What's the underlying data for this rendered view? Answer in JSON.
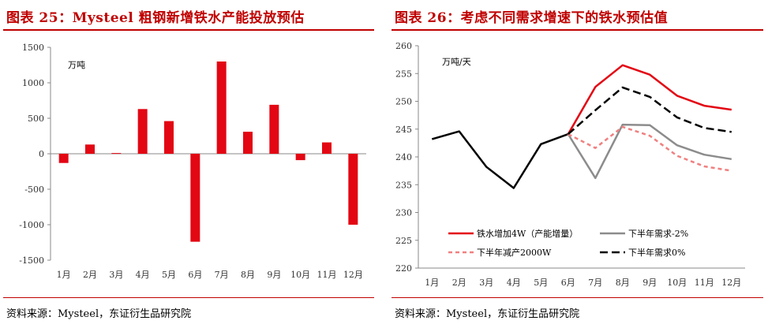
{
  "left": {
    "title": "图表 25：Mysteel 粗钢新增铁水产能投放预估",
    "source": "资料来源：Mysteel，东证衍生品研究院"
  },
  "right": {
    "title": "图表 26：考虑不同需求增速下的铁水预估值",
    "source": "资料来源：Mysteel，东证衍生品研究院"
  },
  "chart_data": [
    {
      "type": "bar",
      "unit_label": "万吨",
      "categories": [
        "1月",
        "2月",
        "3月",
        "4月",
        "5月",
        "6月",
        "7月",
        "8月",
        "9月",
        "10月",
        "11月",
        "12月"
      ],
      "values": [
        -130,
        130,
        10,
        630,
        460,
        -1240,
        1300,
        310,
        690,
        -90,
        160,
        -1000
      ],
      "ylim": [
        -1500,
        1500
      ],
      "yticks": [
        -1500,
        -1000,
        -500,
        0,
        500,
        1000,
        1500
      ],
      "color": "#e30613",
      "grid": false
    },
    {
      "type": "line",
      "unit_label": "万吨/天",
      "categories": [
        "1月",
        "2月",
        "3月",
        "4月",
        "5月",
        "6月",
        "7月",
        "8月",
        "9月",
        "10月",
        "11月",
        "12月"
      ],
      "ylim": [
        220,
        260
      ],
      "yticks": [
        220,
        225,
        230,
        235,
        240,
        245,
        250,
        255,
        260
      ],
      "grid": false,
      "legend_position": "bottom",
      "series": [
        {
          "values": [
            243.2,
            244.6,
            238.2,
            234.4,
            242.3,
            244.1,
            null,
            null,
            null,
            null,
            null,
            null
          ],
          "color": "#000000",
          "style": "solid"
        },
        {
          "name": "铁水增加4W（产能增量）",
          "values": [
            null,
            null,
            null,
            null,
            null,
            244.1,
            252.6,
            256.5,
            254.8,
            251.0,
            249.2,
            248.5
          ],
          "color": "#e30613",
          "style": "solid"
        },
        {
          "name": "下半年需求-2%",
          "values": [
            null,
            null,
            null,
            null,
            null,
            244.1,
            236.2,
            245.8,
            245.7,
            242.1,
            240.4,
            239.6
          ],
          "color": "#8c8c8c",
          "style": "solid"
        },
        {
          "name": "下半年减产2000W",
          "values": [
            null,
            null,
            null,
            null,
            null,
            244.1,
            241.6,
            245.4,
            243.8,
            240.2,
            238.3,
            237.5
          ],
          "color": "#f08080",
          "style": "dash"
        },
        {
          "name": "下半年需求0%",
          "values": [
            null,
            null,
            null,
            null,
            null,
            244.1,
            248.4,
            252.5,
            250.8,
            247.1,
            245.2,
            244.5
          ],
          "color": "#000000",
          "style": "longdash"
        }
      ]
    }
  ]
}
